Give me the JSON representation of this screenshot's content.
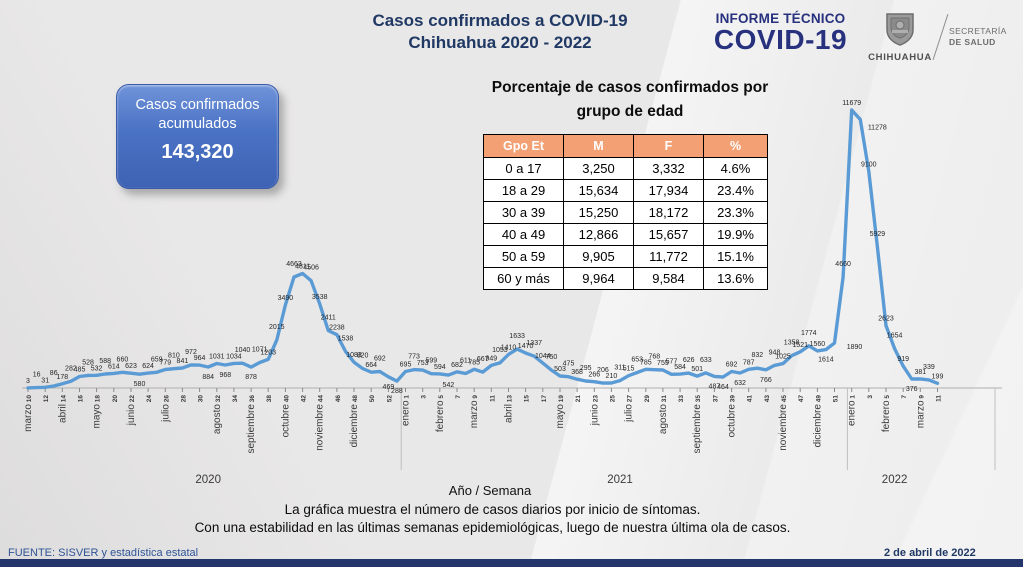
{
  "header": {
    "title_line1": "Casos confirmados a COVID-19",
    "title_line2": "Chihuahua 2020 - 2022",
    "report_line1": "INFORME TÉCNICO",
    "report_line2": "COVID-19",
    "logo": {
      "state": "CHIHUAHUA",
      "secretary_line1": "SECRETARÍA",
      "secretary_line2": "DE SALUD"
    }
  },
  "summary_box": {
    "label": "Casos confirmados acumulados",
    "value": "143,320",
    "bg_color": "#4A72C4"
  },
  "age_table": {
    "title_line1": "Porcentaje de casos confirmados por",
    "title_line2": "grupo de edad",
    "header_bg": "#F2A074",
    "columns": [
      "Gpo Et",
      "M",
      "F",
      "%"
    ],
    "rows": [
      [
        "0 a 17",
        "3,250",
        "3,332",
        "4.6%"
      ],
      [
        "18 a 29",
        "15,634",
        "17,934",
        "23.4%"
      ],
      [
        "30 a 39",
        "15,250",
        "18,172",
        "23.3%"
      ],
      [
        "40 a 49",
        "12,866",
        "15,657",
        "19.9%"
      ],
      [
        "50 a 59",
        "9,905",
        "11,772",
        "15.1%"
      ],
      [
        "60 y más",
        "9,964",
        "9,584",
        "13.6%"
      ]
    ]
  },
  "chart_data": {
    "type": "line",
    "title": "",
    "xlabel": "Año / Semana",
    "ylabel": "",
    "ylim": [
      0,
      11679
    ],
    "line_color": "#5B9BD5",
    "legend": "none",
    "grid": false,
    "values": [
      3,
      16,
      31,
      86,
      178,
      282,
      485,
      528,
      532,
      588,
      614,
      660,
      623,
      580,
      624,
      659,
      779,
      810,
      841,
      972,
      964,
      884,
      1031,
      968,
      1034,
      1040,
      878,
      1071,
      1203,
      2015,
      3490,
      4663,
      4811,
      4506,
      3538,
      2411,
      2238,
      1538,
      1083,
      820,
      664,
      692,
      469,
      288,
      695,
      773,
      753,
      599,
      594,
      542,
      682,
      611,
      785,
      667,
      949,
      1053,
      1410,
      1633,
      1470,
      1337,
      1044,
      750,
      503,
      475,
      368,
      295,
      266,
      206,
      210,
      311,
      515,
      653,
      785,
      768,
      755,
      577,
      584,
      626,
      501,
      633,
      487,
      464,
      692,
      632,
      787,
      832,
      766,
      948,
      1025,
      1358,
      1521,
      1774,
      1560,
      1614,
      1890,
      4660,
      11679,
      11278,
      9100,
      5929,
      2623,
      1654,
      919,
      376,
      381,
      339,
      199
    ],
    "below_indices": [
      13,
      21,
      23,
      26,
      42,
      43,
      49,
      80,
      81,
      83,
      86,
      93,
      103
    ],
    "label_offsets": {
      "94": [
        20,
        6
      ],
      "97": [
        17,
        10
      ]
    },
    "ticks": [
      {
        "w": "10",
        "m": "marzo"
      },
      {
        "w": "12"
      },
      {
        "w": "14",
        "m": "abril"
      },
      {
        "w": "16"
      },
      {
        "w": "18",
        "m": "mayo"
      },
      {
        "w": "20"
      },
      {
        "w": "22",
        "m": "junio"
      },
      {
        "w": "24"
      },
      {
        "w": "26",
        "m": "julio"
      },
      {
        "w": "28"
      },
      {
        "w": "30"
      },
      {
        "w": "32",
        "m": "agosto"
      },
      {
        "w": "34"
      },
      {
        "w": "36",
        "m": "septiembre"
      },
      {
        "w": "38"
      },
      {
        "w": "40",
        "m": "octubre"
      },
      {
        "w": "42"
      },
      {
        "w": "44",
        "m": "noviembre"
      },
      {
        "w": "46"
      },
      {
        "w": "48",
        "m": "diciembre"
      },
      {
        "w": "50"
      },
      {
        "w": "52"
      },
      {
        "w": "1",
        "m": "enero"
      },
      {
        "w": "3"
      },
      {
        "w": "5",
        "m": "febrero"
      },
      {
        "w": "7"
      },
      {
        "w": "9",
        "m": "marzo"
      },
      {
        "w": "11"
      },
      {
        "w": "13",
        "m": "abril"
      },
      {
        "w": "15"
      },
      {
        "w": "17"
      },
      {
        "w": "19",
        "m": "mayo"
      },
      {
        "w": "21"
      },
      {
        "w": "23",
        "m": "junio"
      },
      {
        "w": "25"
      },
      {
        "w": "27",
        "m": "julio"
      },
      {
        "w": "29"
      },
      {
        "w": "31",
        "m": "agosto"
      },
      {
        "w": "33"
      },
      {
        "w": "35",
        "m": "septiembre"
      },
      {
        "w": "37"
      },
      {
        "w": "39",
        "m": "octubre"
      },
      {
        "w": "41"
      },
      {
        "w": "43"
      },
      {
        "w": "45",
        "m": "noviembre"
      },
      {
        "w": "47"
      },
      {
        "w": "49",
        "m": "diciembre"
      },
      {
        "w": "51"
      },
      {
        "w": "1",
        "m": "enero"
      },
      {
        "w": "3"
      },
      {
        "w": "5",
        "m": "febrero"
      },
      {
        "w": "7"
      },
      {
        "w": "9",
        "m": "marzo"
      },
      {
        "w": "11"
      }
    ],
    "years": [
      {
        "label": "2020",
        "from": 0,
        "to": 21
      },
      {
        "label": "2021",
        "from": 22,
        "to": 47
      },
      {
        "label": "2022",
        "from": 48,
        "to": 53
      }
    ]
  },
  "caption": {
    "line1": "La gráfica muestra el número de casos diarios por inicio de síntomas.",
    "line2": "Con una estabilidad en las últimas semanas epidemiológicas, luego de nuestra última ola de casos."
  },
  "footer": {
    "source": "FUENTE: SISVER y estadística estatal",
    "date": "2 de abril de 2022"
  }
}
